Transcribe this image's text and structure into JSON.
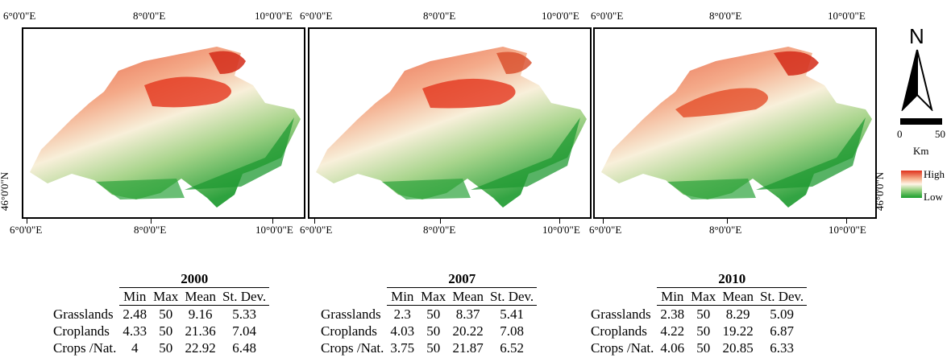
{
  "coords": {
    "top": [
      "6°0'0\"E",
      "8°0'0\"E",
      "10°0'0\"E"
    ],
    "bottom": [
      "6°0'0\"E",
      "8°0'0\"E",
      "10°0'0\"E"
    ],
    "lat": "46°0'0\"N"
  },
  "north_arrow": {
    "label": "N"
  },
  "scale_bar": {
    "zero": "0",
    "max": "50",
    "unit": "Km"
  },
  "legend": {
    "high": "High",
    "low": "Low",
    "colors": {
      "high": "#e0301c",
      "mid": "#fff6e8",
      "low": "#1a9e2c"
    }
  },
  "tables": [
    {
      "year": "2000",
      "headers": [
        "Min",
        "Max",
        "Mean",
        "St. Dev."
      ],
      "rows": [
        {
          "class": "Grasslands",
          "values": [
            "2.48",
            "50",
            "9.16",
            "5.33"
          ]
        },
        {
          "class": "Croplands",
          "values": [
            "4.33",
            "50",
            "21.36",
            "7.04"
          ]
        },
        {
          "class": "Crops /Nat.",
          "values": [
            "4",
            "50",
            "22.92",
            "6.48"
          ]
        }
      ]
    },
    {
      "year": "2007",
      "headers": [
        "Min",
        "Max",
        "Mean",
        "St. Dev."
      ],
      "rows": [
        {
          "class": "Grasslands",
          "values": [
            "2.3",
            "50",
            "8.37",
            "5.41"
          ]
        },
        {
          "class": "Croplands",
          "values": [
            "4.03",
            "50",
            "20.22",
            "7.08"
          ]
        },
        {
          "class": "Crops /Nat.",
          "values": [
            "3.75",
            "50",
            "21.87",
            "6.52"
          ]
        }
      ]
    },
    {
      "year": "2010",
      "headers": [
        "Min",
        "Max",
        "Mean",
        "St. Dev."
      ],
      "rows": [
        {
          "class": "Grasslands",
          "values": [
            "2.38",
            "50",
            "8.29",
            "5.09"
          ]
        },
        {
          "class": "Croplands",
          "values": [
            "4.22",
            "50",
            "19.22",
            "6.87"
          ]
        },
        {
          "class": "Crops /Nat.",
          "values": [
            "4.06",
            "50",
            "20.85",
            "6.33"
          ]
        }
      ]
    }
  ]
}
